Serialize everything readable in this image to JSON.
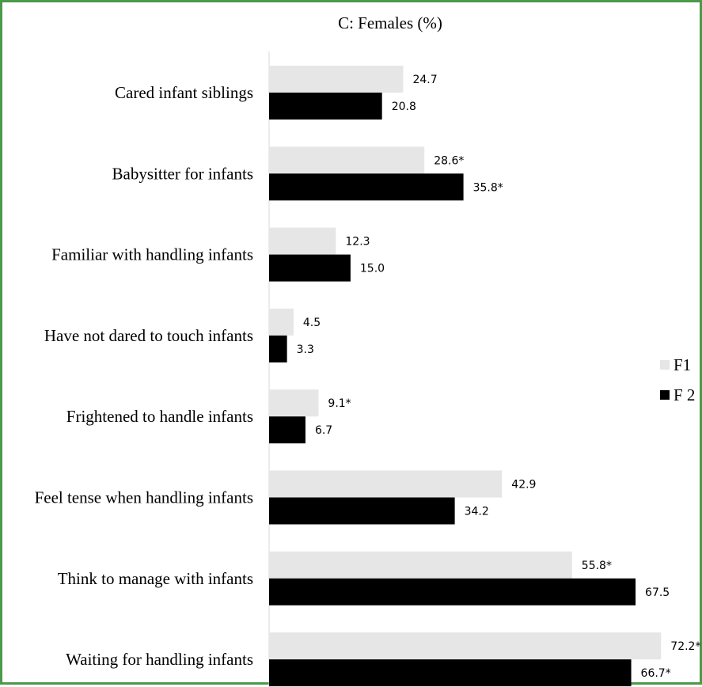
{
  "chart_data": {
    "type": "bar",
    "orientation": "horizontal",
    "title": "C: Females (%)",
    "categories": [
      "Cared infant siblings",
      "Babysitter for infants",
      "Familiar with handling infants",
      "Have not dared to touch infants",
      "Frightened to handle infants",
      "Feel tense when handling infants",
      "Think to manage with infants",
      "Waiting for handling infants"
    ],
    "series": [
      {
        "name": "F1",
        "color": "#e6e6e6",
        "values": [
          24.7,
          28.6,
          12.3,
          4.5,
          9.1,
          42.9,
          55.8,
          72.2
        ],
        "labels": [
          "24.7",
          "28.6*",
          "12.3",
          "4.5",
          "9.1*",
          "42.9",
          "55.8*",
          "72.2*"
        ]
      },
      {
        "name": "F 2",
        "color": "#000000",
        "values": [
          20.8,
          35.8,
          15.0,
          3.3,
          6.7,
          34.2,
          67.5,
          66.7
        ],
        "labels": [
          "20.8",
          "35.8*",
          "15.0",
          "3.3",
          "6.7",
          "34.2",
          "67.5",
          "66.7*"
        ]
      }
    ],
    "xlim": [
      0,
      80
    ],
    "legend_position": "right",
    "grid": false
  }
}
